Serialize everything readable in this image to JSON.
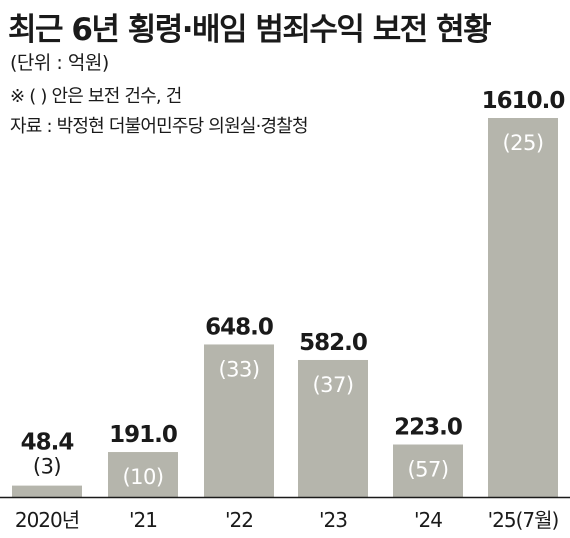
{
  "header": {
    "title": "최근 6년 횡령·배임 범죄수익 보전 현황",
    "unit": "(단위 : 억원)",
    "note": "※ (   ) 안은 보전 건수, 건",
    "source": "자료 : 박정현 더불어민주당 의원실·경찰청"
  },
  "colors": {
    "bar": "#b5b5ac",
    "count_on_bar": "#ffffff",
    "count_above_bar": "#1a1a1a",
    "axis": "#1a1a1a"
  },
  "chart_data": {
    "type": "bar",
    "title": "최근 6년 횡령·배임 범죄수익 보전 현황",
    "ylabel": "",
    "xlabel": "",
    "categories": [
      "2020년",
      "'21",
      "'22",
      "'23",
      "'24",
      "'25(7월)"
    ],
    "values": [
      48.4,
      191.0,
      648.0,
      582.0,
      223.0,
      1610.0
    ],
    "value_labels": [
      "48.4",
      "191.0",
      "648.0",
      "582.0",
      "223.0",
      "1610.0"
    ],
    "counts": [
      3,
      10,
      33,
      37,
      57,
      25
    ],
    "count_labels": [
      "(3)",
      "(10)",
      "(33)",
      "(37)",
      "(57)",
      "(25)"
    ],
    "ylim": [
      0,
      1610.0
    ],
    "grid": false,
    "legend": "none"
  }
}
